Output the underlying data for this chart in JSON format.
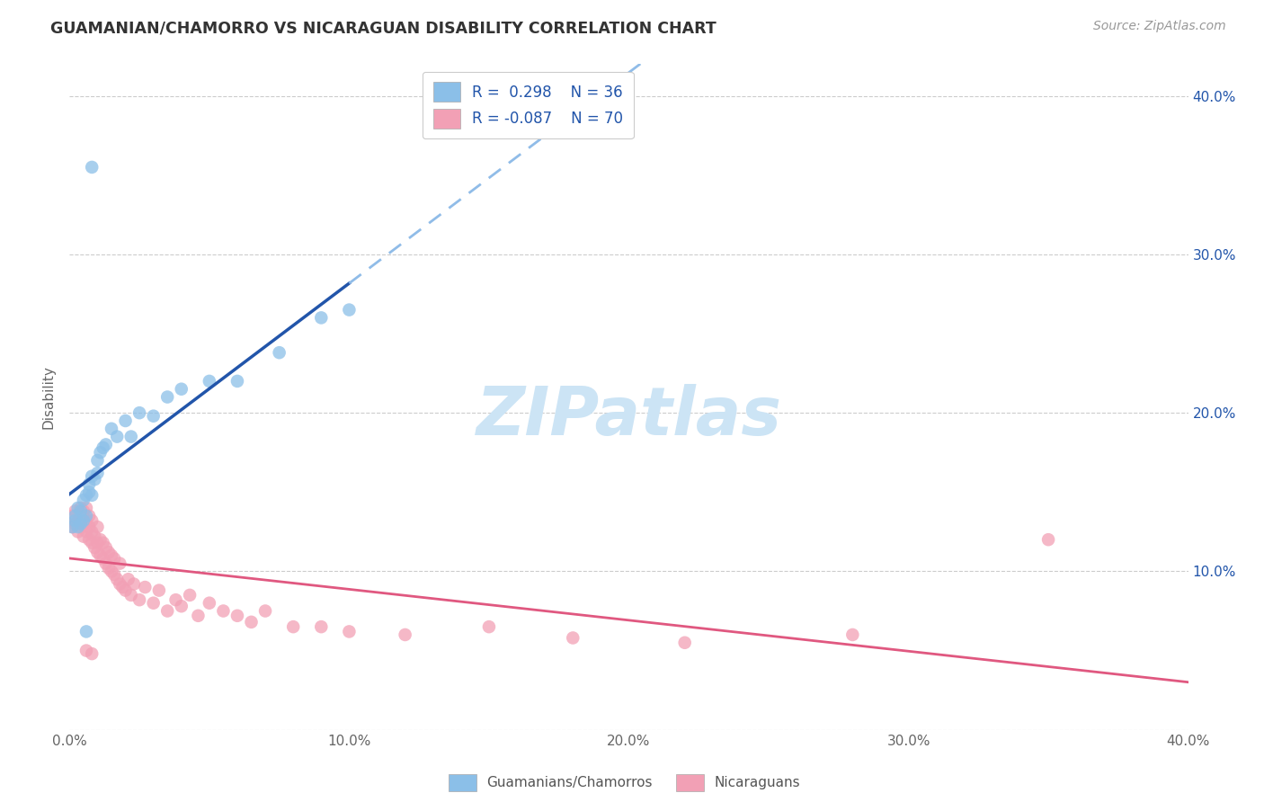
{
  "title": "GUAMANIAN/CHAMORRO VS NICARAGUAN DISABILITY CORRELATION CHART",
  "source": "Source: ZipAtlas.com",
  "ylabel": "Disability",
  "xlim": [
    0.0,
    0.4
  ],
  "ylim": [
    0.0,
    0.42
  ],
  "xticks": [
    0.0,
    0.1,
    0.2,
    0.3,
    0.4
  ],
  "yticks": [
    0.0,
    0.1,
    0.2,
    0.3,
    0.4
  ],
  "xticklabels": [
    "0.0%",
    "10.0%",
    "20.0%",
    "30.0%",
    "40.0%"
  ],
  "yticklabels_right": [
    "",
    "10.0%",
    "20.0%",
    "30.0%",
    "40.0%"
  ],
  "blue_color": "#8bbfe8",
  "pink_color": "#f2a0b5",
  "blue_line_color": "#2255aa",
  "pink_line_color": "#e05880",
  "dashed_line_color": "#90bce8",
  "background_color": "#ffffff",
  "grid_color": "#cccccc",
  "legend_label_blue": "Guamanians/Chamorros",
  "legend_label_pink": "Nicaraguans",
  "blue_x": [
    0.001,
    0.002,
    0.002,
    0.003,
    0.003,
    0.004,
    0.004,
    0.005,
    0.005,
    0.006,
    0.006,
    0.007,
    0.007,
    0.008,
    0.008,
    0.009,
    0.01,
    0.01,
    0.011,
    0.012,
    0.013,
    0.015,
    0.017,
    0.02,
    0.022,
    0.025,
    0.03,
    0.035,
    0.04,
    0.05,
    0.06,
    0.075,
    0.09,
    0.1,
    0.008,
    0.006
  ],
  "blue_y": [
    0.128,
    0.132,
    0.135,
    0.128,
    0.14,
    0.13,
    0.138,
    0.132,
    0.145,
    0.135,
    0.148,
    0.15,
    0.155,
    0.16,
    0.148,
    0.158,
    0.162,
    0.17,
    0.175,
    0.178,
    0.18,
    0.19,
    0.185,
    0.195,
    0.185,
    0.2,
    0.198,
    0.21,
    0.215,
    0.22,
    0.22,
    0.238,
    0.26,
    0.265,
    0.355,
    0.062
  ],
  "pink_x": [
    0.001,
    0.001,
    0.002,
    0.002,
    0.003,
    0.003,
    0.004,
    0.004,
    0.005,
    0.005,
    0.005,
    0.006,
    0.006,
    0.006,
    0.007,
    0.007,
    0.007,
    0.008,
    0.008,
    0.008,
    0.009,
    0.009,
    0.01,
    0.01,
    0.01,
    0.011,
    0.011,
    0.012,
    0.012,
    0.013,
    0.013,
    0.014,
    0.014,
    0.015,
    0.015,
    0.016,
    0.016,
    0.017,
    0.018,
    0.018,
    0.019,
    0.02,
    0.021,
    0.022,
    0.023,
    0.025,
    0.027,
    0.03,
    0.032,
    0.035,
    0.038,
    0.04,
    0.043,
    0.046,
    0.05,
    0.055,
    0.06,
    0.065,
    0.07,
    0.08,
    0.09,
    0.1,
    0.12,
    0.15,
    0.18,
    0.22,
    0.28,
    0.35,
    0.006,
    0.008
  ],
  "pink_y": [
    0.128,
    0.135,
    0.13,
    0.138,
    0.125,
    0.132,
    0.128,
    0.14,
    0.122,
    0.13,
    0.138,
    0.125,
    0.132,
    0.14,
    0.12,
    0.128,
    0.135,
    0.118,
    0.125,
    0.132,
    0.115,
    0.122,
    0.112,
    0.118,
    0.128,
    0.11,
    0.12,
    0.108,
    0.118,
    0.105,
    0.115,
    0.102,
    0.112,
    0.1,
    0.11,
    0.098,
    0.108,
    0.095,
    0.092,
    0.105,
    0.09,
    0.088,
    0.095,
    0.085,
    0.092,
    0.082,
    0.09,
    0.08,
    0.088,
    0.075,
    0.082,
    0.078,
    0.085,
    0.072,
    0.08,
    0.075,
    0.072,
    0.068,
    0.075,
    0.065,
    0.065,
    0.062,
    0.06,
    0.065,
    0.058,
    0.055,
    0.06,
    0.12,
    0.05,
    0.048
  ],
  "watermark": "ZIPatlas",
  "watermark_color": "#cce4f5",
  "figsize": [
    14.06,
    8.92
  ],
  "dpi": 100
}
